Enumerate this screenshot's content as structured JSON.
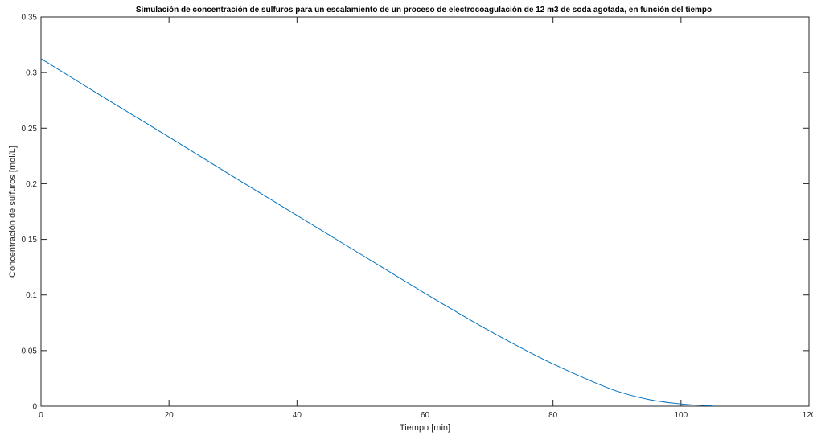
{
  "chart_data": {
    "type": "line",
    "title": "Simulación de concentración de sulfuros para un escalamiento de un proceso de electrocoagulación de 12 m3 de soda agotada, en función del tiempo",
    "xlabel": "Tiempo [min]",
    "ylabel": "Concentración de sulfuros [mol/L]",
    "xlim": [
      0,
      120
    ],
    "ylim": [
      0,
      0.35
    ],
    "xticks": [
      0,
      20,
      40,
      60,
      80,
      100,
      120
    ],
    "xtick_labels": [
      "0",
      "20",
      "40",
      "60",
      "80",
      "100",
      "120"
    ],
    "yticks": [
      0,
      0.05,
      0.1,
      0.15,
      0.2,
      0.25,
      0.3,
      0.35
    ],
    "ytick_labels": [
      "0",
      "0.05",
      "0.1",
      "0.15",
      "0.2",
      "0.25",
      "0.3",
      "0.35"
    ],
    "grid": false,
    "box": true,
    "series": [
      {
        "color": "#0072BD",
        "x": [
          0,
          10,
          20,
          30,
          40,
          50,
          60,
          65,
          70,
          75,
          80,
          85,
          90,
          95,
          100,
          103,
          105
        ],
        "y": [
          0.3125,
          0.277,
          0.242,
          0.2065,
          0.1715,
          0.1365,
          0.1015,
          0.0845,
          0.068,
          0.0525,
          0.038,
          0.025,
          0.0135,
          0.006,
          0.002,
          0.0008,
          0.0003
        ]
      }
    ]
  }
}
